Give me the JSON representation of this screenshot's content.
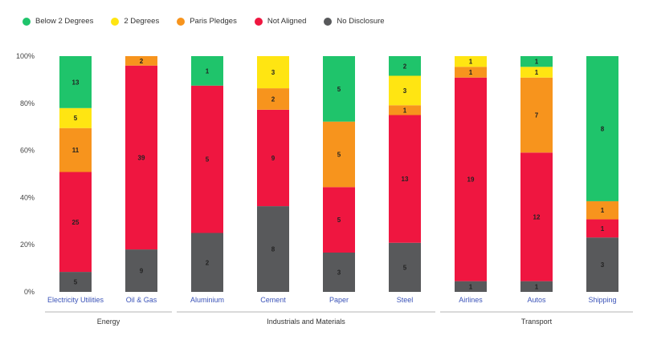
{
  "chart_data": {
    "type": "bar",
    "stacked": true,
    "normalized": true,
    "categories": [
      "Electricity Utilities",
      "Oil & Gas",
      "Aluminium",
      "Cement",
      "Paper",
      "Steel",
      "Airlines",
      "Autos",
      "Shipping"
    ],
    "groups": [
      {
        "label": "Energy",
        "categories": [
          "Electricity Utilities",
          "Oil & Gas"
        ]
      },
      {
        "label": "Industrials and Materials",
        "categories": [
          "Aluminium",
          "Cement",
          "Paper",
          "Steel"
        ]
      },
      {
        "label": "Transport",
        "categories": [
          "Airlines",
          "Autos",
          "Shipping"
        ]
      }
    ],
    "series": [
      {
        "name": "No Disclosure",
        "color": "#58595b",
        "values": [
          5,
          9,
          2,
          8,
          3,
          5,
          1,
          1,
          3
        ]
      },
      {
        "name": "Not Aligned",
        "color": "#ef1640",
        "values": [
          25,
          39,
          5,
          9,
          5,
          13,
          19,
          12,
          1
        ]
      },
      {
        "name": "Paris Pledges",
        "color": "#f7941d",
        "values": [
          11,
          2,
          0,
          2,
          5,
          1,
          1,
          7,
          1
        ]
      },
      {
        "name": "2 Degrees",
        "color": "#ffe512",
        "values": [
          5,
          0,
          0,
          3,
          0,
          3,
          1,
          1,
          0
        ]
      },
      {
        "name": "Below 2 Degrees",
        "color": "#1fc46b",
        "values": [
          13,
          0,
          1,
          0,
          5,
          2,
          0,
          1,
          8
        ]
      }
    ],
    "legend_order": [
      "Below 2 Degrees",
      "2 Degrees",
      "Paris Pledges",
      "Not Aligned",
      "No Disclosure"
    ],
    "y_ticks": [
      "0%",
      "20%",
      "40%",
      "60%",
      "80%",
      "100%"
    ],
    "ylim": [
      0,
      100
    ],
    "legend_position": "top-left",
    "grid": false
  }
}
